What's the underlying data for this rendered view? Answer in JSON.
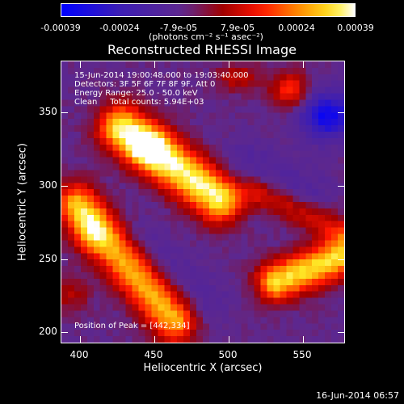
{
  "colorbar": {
    "ticks": [
      "-0.00039",
      "-0.00024",
      "-7.9e-05",
      "7.9e-05",
      "0.00024",
      "0.00039"
    ],
    "unit": "(photons cm⁻² s⁻¹ asec⁻²)"
  },
  "title": "Reconstructed RHESSI Image",
  "info": {
    "time": "15-Jun-2014 19:00:48.000 to 19:03:40.000",
    "detectors": "Detectors: 3F 5F 6F 7F 8F 9F, Att 0",
    "energy": "Energy Range: 25.0 - 50.0 keV",
    "clean": "Clean     Total counts: 5.94E+03",
    "peak": "Position of Peak = [442,334]"
  },
  "axes": {
    "xlabel": "Heliocentric X (arcsec)",
    "ylabel": "Heliocentric Y (arcsec)",
    "xticks": [
      "400",
      "450",
      "500",
      "550"
    ],
    "yticks": [
      "350",
      "300",
      "250",
      "200"
    ]
  },
  "timestamp": "16-Jun-2014 06:57"
}
